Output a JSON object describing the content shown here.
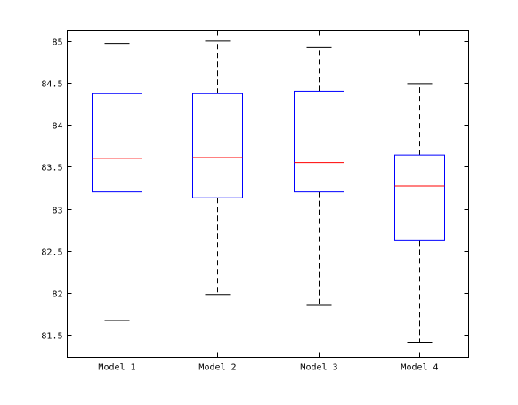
{
  "chart_data": {
    "type": "boxplot",
    "title": "",
    "xlabel": "",
    "ylabel": "",
    "categories": [
      "Model 1",
      "Model 2",
      "Model 3",
      "Model 4"
    ],
    "ylim": [
      81.23,
      85.12
    ],
    "yticks": [
      81.5,
      82,
      82.5,
      83,
      83.5,
      84,
      84.5,
      85
    ],
    "ytick_labels": [
      "81.5",
      "82",
      "82.5",
      "83",
      "83.5",
      "84",
      "84.5",
      "85"
    ],
    "boxes": [
      {
        "category": "Model 1",
        "whisker_low": 81.67,
        "q1": 83.2,
        "median": 83.6,
        "q3": 84.37,
        "whisker_high": 84.97
      },
      {
        "category": "Model 2",
        "whisker_low": 81.98,
        "q1": 83.13,
        "median": 83.61,
        "q3": 84.37,
        "whisker_high": 85.0
      },
      {
        "category": "Model 3",
        "whisker_low": 81.85,
        "q1": 83.2,
        "median": 83.55,
        "q3": 84.4,
        "whisker_high": 84.92
      },
      {
        "category": "Model 4",
        "whisker_low": 81.41,
        "q1": 82.62,
        "median": 83.27,
        "q3": 83.64,
        "whisker_high": 84.49
      }
    ],
    "grid": false,
    "colors": {
      "box": "#0000ff",
      "median": "#ff0000",
      "whisker": "#000000"
    }
  }
}
